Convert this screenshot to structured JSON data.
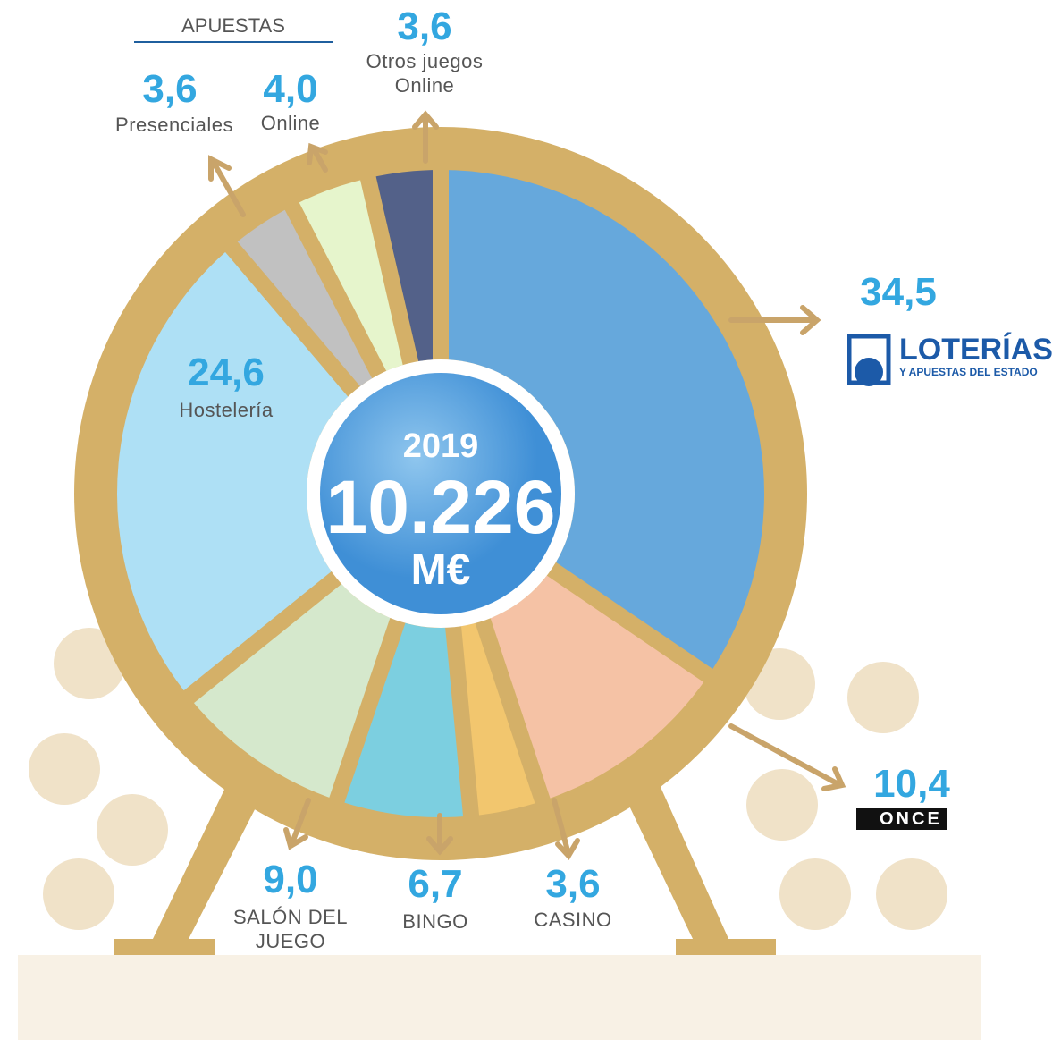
{
  "chart_data": {
    "type": "pie",
    "group_label": "APUESTAS",
    "center": {
      "year": "2019",
      "total": "10.226",
      "unit": "M€"
    },
    "categories": [
      "LOTERÍAS",
      "ONCE",
      "CASINO",
      "BINGO",
      "SALÓN DEL JUEGO",
      "Hostelería",
      "Presenciales",
      "Online",
      "Otros juegos Online"
    ],
    "subtitle_loterias": "Y APUESTAS DEL ESTADO",
    "values": [
      34.5,
      10.4,
      3.6,
      6.7,
      9.0,
      24.6,
      3.6,
      4.0,
      3.6
    ],
    "value_labels": [
      "34,5",
      "10,4",
      "3,6",
      "6,7",
      "9,0",
      "24,6",
      "3,6",
      "4,0",
      "3,6"
    ],
    "colors": [
      "#66a8dc",
      "#f5c2a5",
      "#f2c66e",
      "#7ccfe0",
      "#d5e8cc",
      "#aee0f5",
      "#c1c1c1",
      "#e6f5cc",
      "#536189"
    ]
  }
}
